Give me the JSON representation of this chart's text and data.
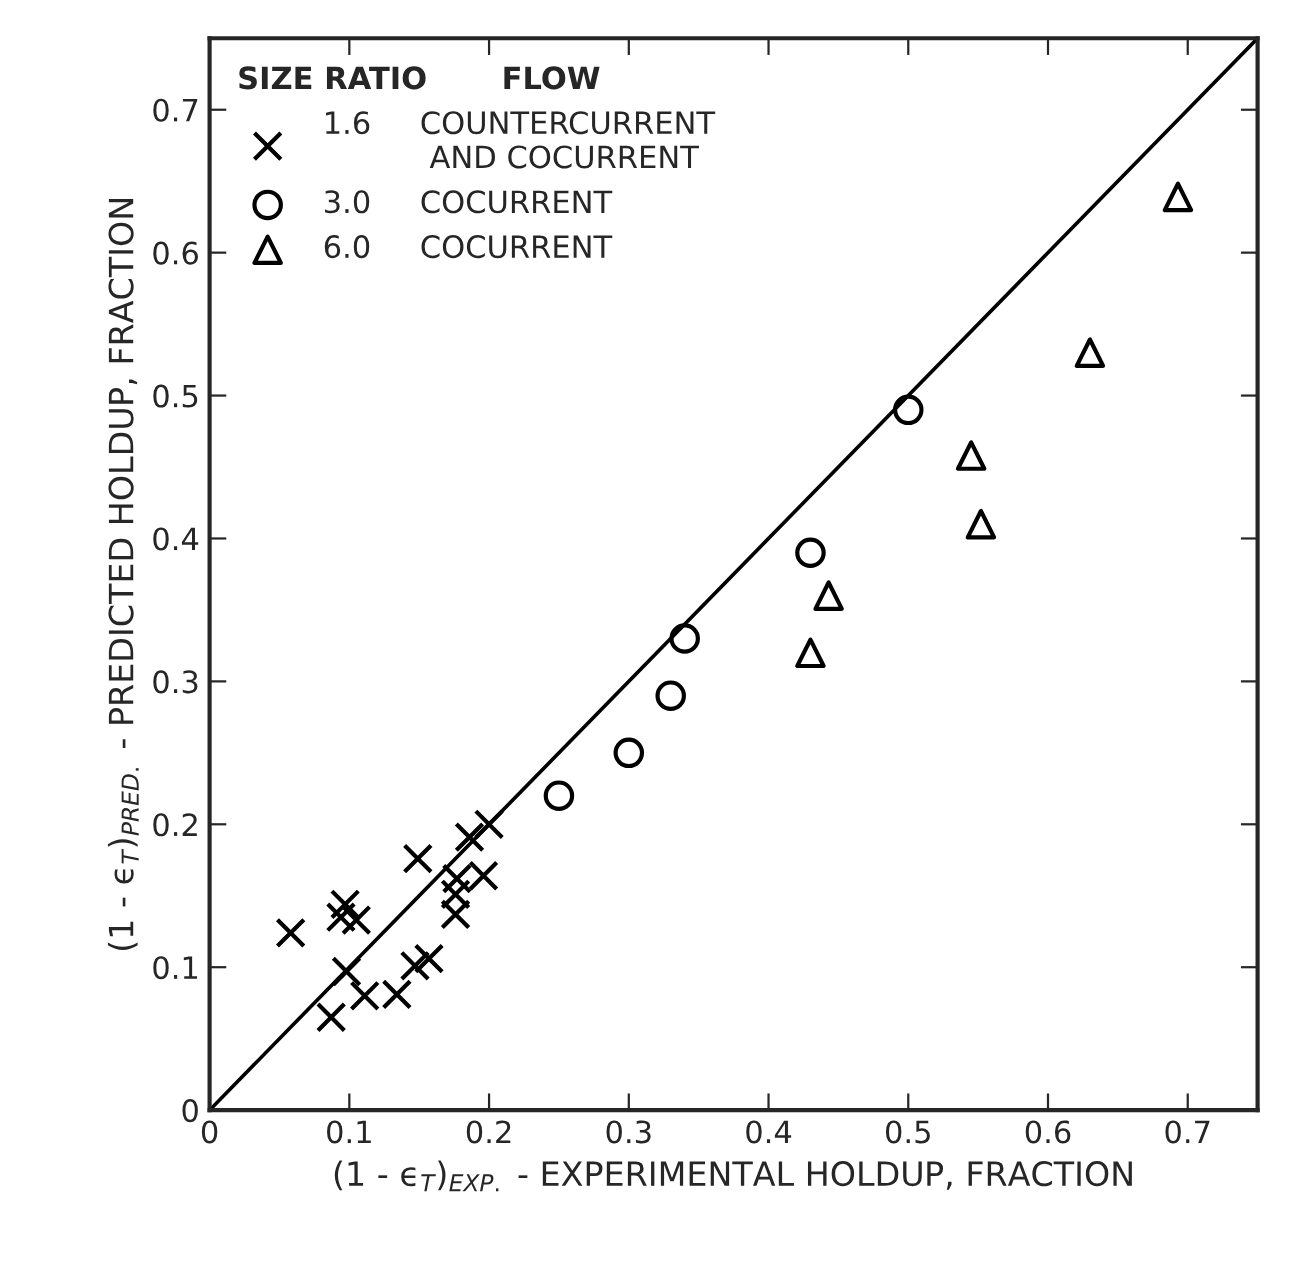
{
  "chart_data": {
    "type": "scatter",
    "xlabel": "(1 - ϵ$_{T}$)$_{EXP.}$ - EXPERIMENTAL HOLDUP, FRACTION",
    "ylabel": "(1 - ϵ$_{T}$)$_{PRED.}$ - PREDICTED HOLDUP, FRACTION",
    "legend_title": "SIZE RATIO       FLOW",
    "series": [
      {
        "name": "1.6     COUNTERCURRENT\n           AND COCURRENT",
        "color": "#000000",
        "marker": "cross",
        "x": [
          0.058,
          0.097,
          0.094,
          0.105,
          0.098,
          0.087,
          0.111,
          0.134,
          0.147,
          0.157,
          0.149,
          0.176,
          0.176,
          0.177,
          0.186,
          0.2,
          0.196
        ],
        "values": [
          0.124,
          0.144,
          0.135,
          0.133,
          0.097,
          0.065,
          0.08,
          0.081,
          0.101,
          0.106,
          0.176,
          0.137,
          0.151,
          0.162,
          0.191,
          0.2,
          0.164
        ]
      },
      {
        "name": "3.0     COCURRENT",
        "color": "#000000",
        "marker": "circle",
        "x": [
          0.25,
          0.3,
          0.33,
          0.34,
          0.43,
          0.5
        ],
        "values": [
          0.22,
          0.25,
          0.29,
          0.33,
          0.39,
          0.49
        ]
      },
      {
        "name": "6.0     COCURRENT",
        "color": "#000000",
        "marker": "triangle",
        "x": [
          0.43,
          0.443,
          0.545,
          0.552,
          0.63,
          0.693
        ],
        "values": [
          0.32,
          0.36,
          0.458,
          0.41,
          0.53,
          0.639
        ]
      },
      {
        "type": "line",
        "color": "#000000",
        "x": [
          0,
          0.75
        ],
        "values": [
          0,
          0.75
        ]
      }
    ],
    "xlim": [
      0,
      0.75
    ],
    "ylim": [
      0,
      0.75
    ],
    "xticks": [
      0,
      0.1,
      0.2,
      0.3,
      0.4,
      0.5,
      0.6,
      0.7
    ],
    "yticks": [
      0,
      0.1,
      0.2,
      0.3,
      0.4,
      0.5,
      0.6,
      0.7
    ],
    "grid": false,
    "legend": "top left"
  }
}
